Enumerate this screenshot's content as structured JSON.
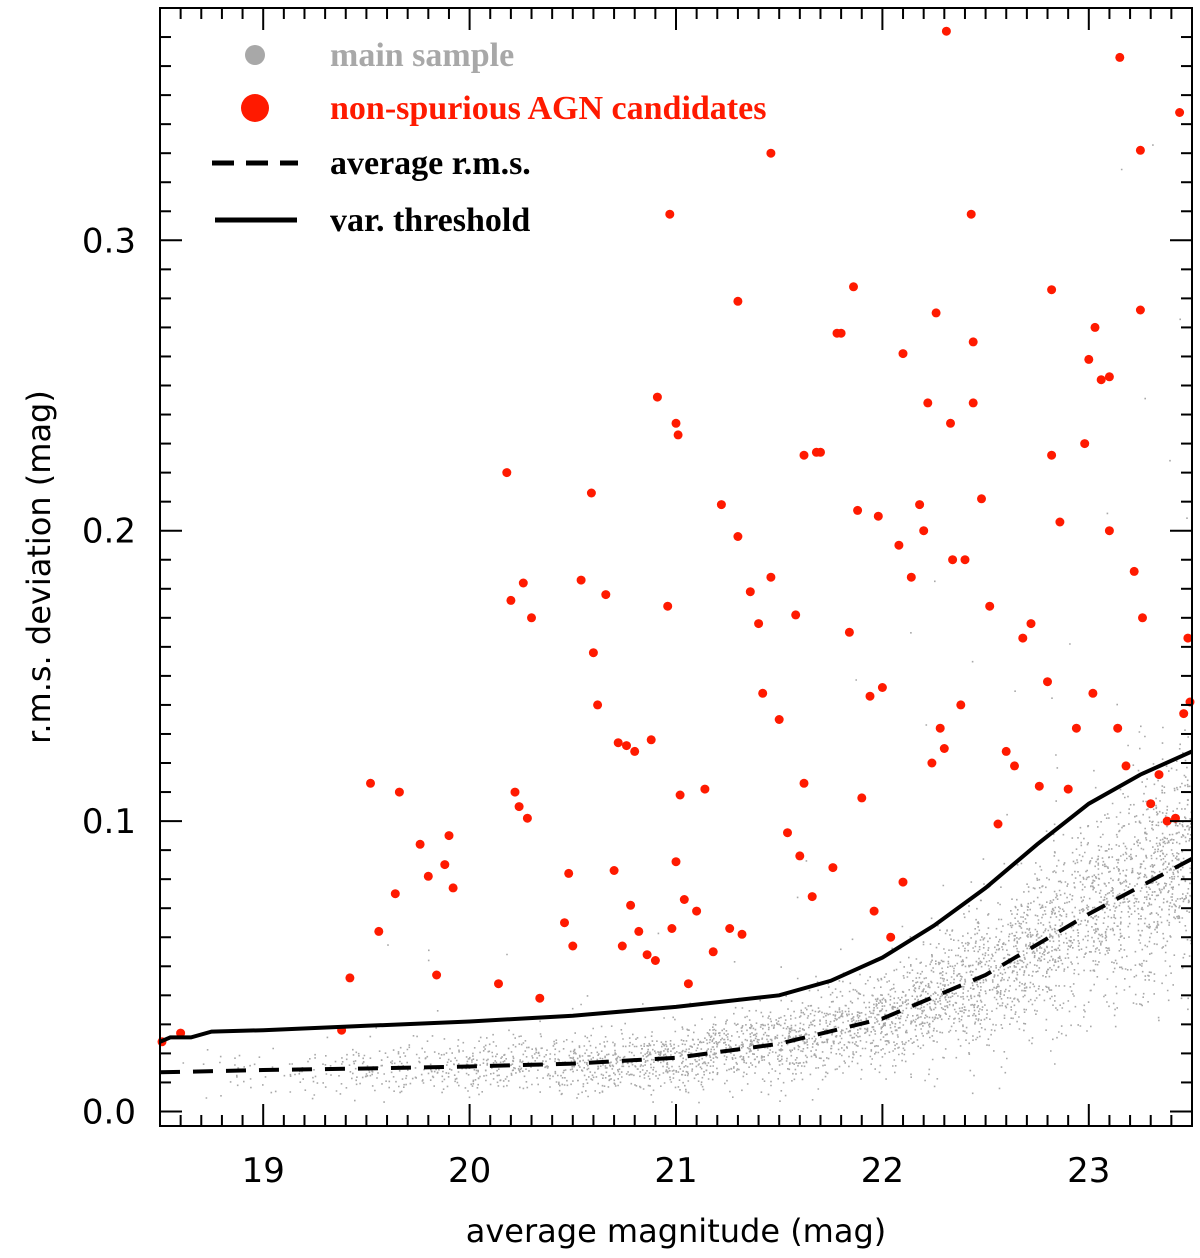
{
  "chart_data": {
    "type": "scatter",
    "title": "",
    "xlabel": "average magnitude (mag)",
    "ylabel": "r.m.s. deviation (mag)",
    "xlim": [
      18.5,
      23.5
    ],
    "ylim": [
      -0.005,
      0.38
    ],
    "x_ticks": [
      19,
      20,
      21,
      22,
      23
    ],
    "x_tick_labels": [
      "19",
      "20",
      "21",
      "22",
      "23"
    ],
    "y_ticks": [
      0.0,
      0.1,
      0.2,
      0.3
    ],
    "y_tick_labels": [
      "0.0",
      "0.1",
      "0.2",
      "0.3"
    ],
    "legend": {
      "placement": "top-left",
      "entries": [
        {
          "label": "main sample",
          "marker": "small-dot",
          "color": "#a8a8a8"
        },
        {
          "label": "non-spurious AGN candidates",
          "marker": "dot",
          "color": "#ff1a00"
        },
        {
          "label": "average r.m.s.",
          "marker": "dashed-line",
          "color": "#000000"
        },
        {
          "label": "var. threshold",
          "marker": "solid-line",
          "color": "#000000"
        }
      ]
    },
    "series": [
      {
        "name": "average r.m.s.",
        "style": "dashed",
        "color": "#000000",
        "x": [
          18.5,
          19.0,
          19.5,
          20.0,
          20.5,
          21.0,
          21.5,
          22.0,
          22.5,
          23.0,
          23.5
        ],
        "y": [
          0.0135,
          0.0143,
          0.0148,
          0.0155,
          0.0165,
          0.0185,
          0.0233,
          0.032,
          0.047,
          0.068,
          0.087
        ]
      },
      {
        "name": "var. threshold",
        "style": "solid",
        "color": "#000000",
        "x": [
          18.5,
          18.55,
          18.65,
          18.75,
          19.0,
          19.5,
          20.0,
          20.5,
          21.0,
          21.5,
          21.75,
          22.0,
          22.25,
          22.5,
          22.75,
          23.0,
          23.25,
          23.5
        ],
        "y": [
          0.024,
          0.0255,
          0.0255,
          0.0275,
          0.028,
          0.0295,
          0.031,
          0.033,
          0.036,
          0.04,
          0.045,
          0.053,
          0.064,
          0.077,
          0.092,
          0.106,
          0.116,
          0.124
        ]
      },
      {
        "name": "non-spurious AGN candidates",
        "style": "points",
        "color": "#ff1a00",
        "x": [
          18.5,
          18.6,
          19.38,
          19.42,
          19.52,
          19.56,
          19.64,
          19.66,
          19.76,
          19.8,
          19.84,
          19.88,
          19.9,
          19.92,
          20.14,
          20.2,
          20.22,
          20.24,
          20.26,
          20.28,
          20.3,
          20.34,
          20.46,
          20.48,
          20.5,
          20.54,
          20.6,
          20.62,
          20.66,
          20.7,
          20.72,
          20.74,
          20.76,
          20.78,
          20.8,
          20.82,
          20.86,
          20.88,
          20.9,
          20.96,
          20.98,
          21.0,
          21.02,
          21.04,
          21.06,
          21.1,
          21.14,
          21.18,
          21.22,
          21.26,
          21.3,
          21.32,
          21.36,
          21.4,
          21.42,
          21.46,
          21.5,
          21.54,
          21.58,
          21.6,
          21.62,
          21.66,
          21.7,
          21.76,
          21.8,
          21.84,
          21.88,
          21.9,
          21.94,
          21.96,
          21.98,
          22.0,
          22.04,
          22.08,
          22.1,
          22.14,
          22.18,
          22.2,
          22.24,
          22.28,
          22.3,
          22.34,
          22.38,
          22.4,
          22.44,
          22.48,
          22.52,
          22.56,
          22.6,
          22.64,
          22.68,
          22.72,
          22.76,
          22.8,
          22.82,
          22.86,
          22.9,
          22.94,
          22.98,
          23.0,
          23.02,
          23.06,
          23.1,
          23.14,
          23.18,
          23.22,
          23.26,
          23.3,
          23.34,
          23.38,
          23.42,
          23.46,
          23.48,
          23.5,
          22.31,
          23.15,
          23.44,
          21.46,
          20.97,
          22.43,
          23.25,
          21.3,
          22.82,
          21.86,
          22.26,
          23.25,
          22.1,
          21.78,
          23.03,
          23.1,
          20.91,
          21.0,
          21.01,
          22.33,
          21.62,
          21.68,
          20.18,
          20.59,
          22.22,
          22.44
        ],
        "y": [
          0.024,
          0.027,
          0.028,
          0.046,
          0.113,
          0.062,
          0.075,
          0.11,
          0.092,
          0.081,
          0.047,
          0.085,
          0.095,
          0.077,
          0.044,
          0.176,
          0.11,
          0.105,
          0.182,
          0.101,
          0.17,
          0.039,
          0.065,
          0.082,
          0.057,
          0.183,
          0.158,
          0.14,
          0.178,
          0.083,
          0.127,
          0.057,
          0.126,
          0.071,
          0.124,
          0.062,
          0.054,
          0.128,
          0.052,
          0.174,
          0.063,
          0.086,
          0.109,
          0.073,
          0.044,
          0.069,
          0.111,
          0.055,
          0.209,
          0.063,
          0.198,
          0.061,
          0.179,
          0.168,
          0.144,
          0.184,
          0.135,
          0.096,
          0.171,
          0.088,
          0.113,
          0.074,
          0.227,
          0.084,
          0.268,
          0.165,
          0.207,
          0.108,
          0.143,
          0.069,
          0.205,
          0.146,
          0.06,
          0.195,
          0.079,
          0.184,
          0.209,
          0.2,
          0.12,
          0.132,
          0.125,
          0.19,
          0.14,
          0.19,
          0.244,
          0.211,
          0.174,
          0.099,
          0.124,
          0.119,
          0.163,
          0.168,
          0.112,
          0.148,
          0.226,
          0.203,
          0.111,
          0.132,
          0.23,
          0.259,
          0.144,
          0.252,
          0.2,
          0.132,
          0.119,
          0.186,
          0.17,
          0.106,
          0.116,
          0.1,
          0.101,
          0.137,
          0.163,
          0.141,
          0.372,
          0.363,
          0.344,
          0.33,
          0.309,
          0.309,
          0.331,
          0.279,
          0.283,
          0.284,
          0.275,
          0.276,
          0.261,
          0.268,
          0.27,
          0.253,
          0.246,
          0.237,
          0.233,
          0.237,
          0.226,
          0.227,
          0.22,
          0.213,
          0.244,
          0.265
        ]
      }
    ]
  }
}
